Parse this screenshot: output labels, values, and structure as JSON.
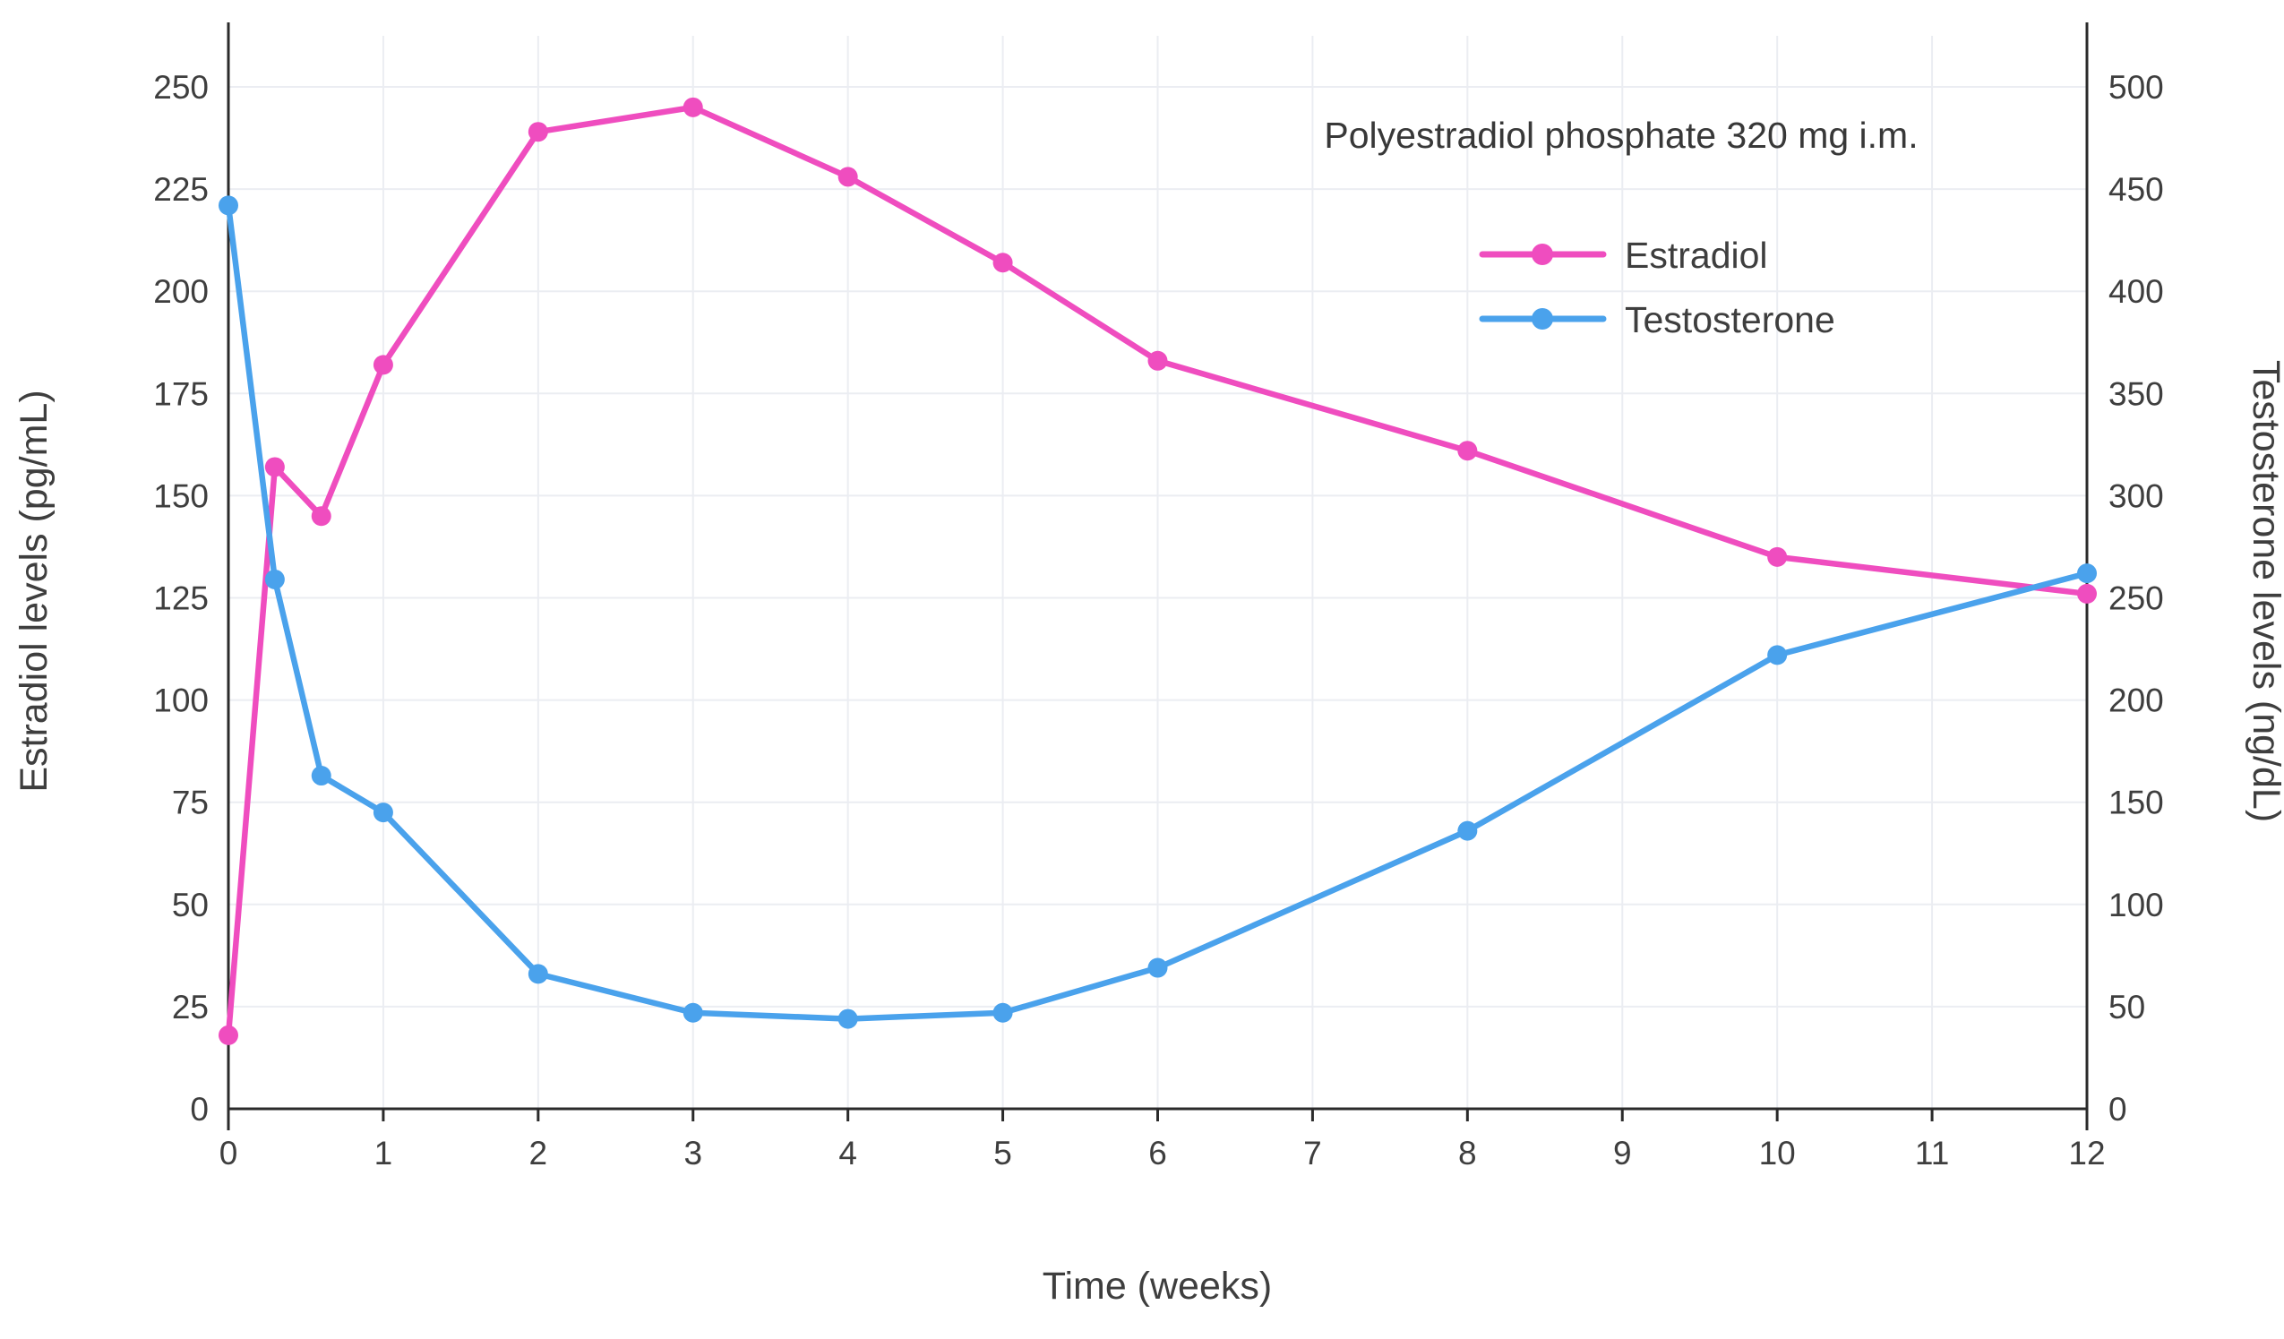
{
  "chart_data": {
    "type": "line",
    "annotation": "Polyestradiol phosphate 320 mg i.m.",
    "xlabel": "Time (weeks)",
    "ylabel_left": "Estradiol levels (pg/mL)",
    "ylabel_right": "Testosterone levels (ng/dL)",
    "x_range": [
      0,
      12
    ],
    "y_left_range": [
      0,
      250
    ],
    "y_right_range": [
      0,
      500
    ],
    "x_ticks": [
      0,
      1,
      2,
      3,
      4,
      5,
      6,
      7,
      8,
      9,
      10,
      11,
      12
    ],
    "y_left_ticks": [
      0,
      25,
      50,
      75,
      100,
      125,
      150,
      175,
      200,
      225,
      250
    ],
    "y_right_ticks": [
      0,
      50,
      100,
      150,
      200,
      250,
      300,
      350,
      400,
      450,
      500
    ],
    "grid": true,
    "legend_position": "top-right",
    "series": [
      {
        "name": "Estradiol",
        "axis": "left",
        "unit": "pg/mL",
        "color": "#ef4dbf",
        "x": [
          0,
          0.3,
          0.6,
          1,
          2,
          3,
          4,
          5,
          6,
          8,
          10,
          12
        ],
        "y": [
          18,
          157,
          145,
          182,
          239,
          245,
          228,
          207,
          183,
          161,
          135,
          126
        ]
      },
      {
        "name": "Testosterone",
        "axis": "right",
        "unit": "ng/dL",
        "color": "#4aa2ec",
        "x": [
          0,
          0.3,
          0.6,
          1,
          2,
          3,
          4,
          5,
          6,
          8,
          10,
          12
        ],
        "y": [
          442,
          259,
          163,
          145,
          66,
          47,
          44,
          47,
          69,
          136,
          222,
          262
        ]
      }
    ],
    "colors": {
      "grid": "#ebedf2",
      "axis": "#2b2b2b",
      "text": "#3e3e3e"
    }
  }
}
